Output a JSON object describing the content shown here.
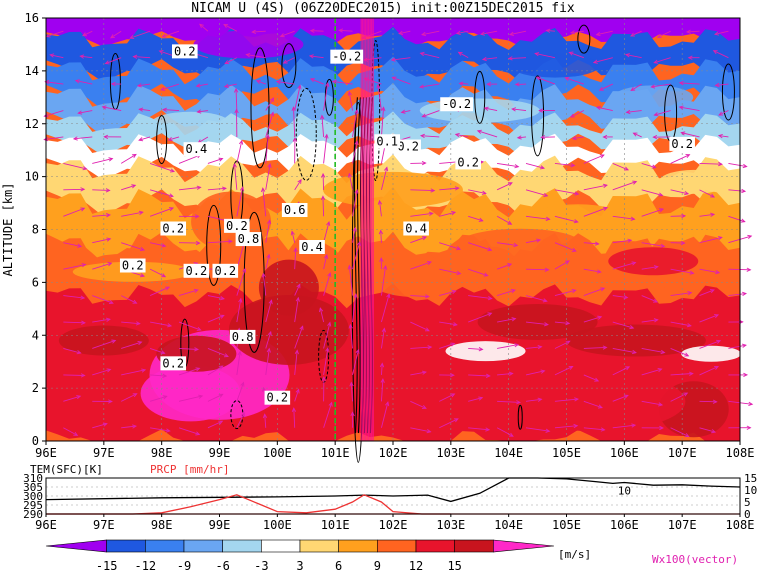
{
  "title": "NICAM U (4S) (06Z20DEC2015) init:00Z15DEC2015 fix",
  "chart_data": [
    {
      "type": "heatmap",
      "ylabel": "ALTITUDE [km]",
      "x_ticks": [
        "96E",
        "97E",
        "98E",
        "99E",
        "100E",
        "101E",
        "102E",
        "103E",
        "104E",
        "105E",
        "106E",
        "107E",
        "108E"
      ],
      "y_ticks": [
        "0",
        "2",
        "4",
        "6",
        "8",
        "10",
        "12",
        "14",
        "16"
      ],
      "xlim": [
        96,
        108
      ],
      "ylim": [
        0,
        16
      ],
      "unit": "m/s",
      "vector_label": "Wx100(vector)",
      "contour_labels": [
        "0.2",
        "-0.2",
        "0.4",
        "0.6",
        "0.8",
        "0.2",
        "0.2",
        "0.2",
        "0.2",
        "0.2",
        "-0.2",
        "0.2",
        "0.2",
        "0.4",
        "-0.2",
        "0.8",
        "0.2",
        "0.4",
        "0.2",
        "0.1"
      ],
      "colors": {
        "vector": "#e020b0",
        "dashed_line": "#22bb22",
        "contour": "#000000"
      }
    },
    {
      "type": "line",
      "series": [
        {
          "name": "TEM(SFC)[K]",
          "color": "#000000",
          "x": [
            96,
            98,
            100,
            101,
            101.5,
            102,
            102.6,
            103,
            103.5,
            104,
            104.5,
            105,
            105.5,
            105.8,
            106,
            106.5,
            107,
            107.5,
            108
          ],
          "values": [
            298,
            299,
            299.5,
            300,
            300.5,
            300,
            300.5,
            297,
            301.5,
            310,
            310,
            309.5,
            308,
            307,
            307.5,
            306,
            306.2,
            305.5,
            305
          ]
        },
        {
          "name": "PRCP [mm/hr]",
          "color": "#ee3333",
          "x": [
            96,
            97.5,
            98,
            98.5,
            99,
            99.3,
            99.7,
            100,
            100.5,
            101,
            101.3,
            101.5,
            101.8,
            102,
            102.5,
            103
          ],
          "values": [
            0,
            0,
            0.5,
            3,
            6,
            8,
            4,
            1,
            0.5,
            2,
            5,
            8,
            5,
            1,
            0,
            0
          ]
        }
      ],
      "y_ticks_left": [
        "290",
        "295",
        "300",
        "305",
        "310"
      ],
      "y_ticks_right": [
        "0",
        "5",
        "10",
        "15"
      ],
      "right_marker_label": "10"
    }
  ],
  "colorbar": {
    "labels": [
      "-15",
      "-12",
      "-9",
      "-6",
      "-3",
      "3",
      "6",
      "9",
      "12",
      "15"
    ],
    "unit": "[m/s]",
    "colors": [
      "#a000f0",
      "#1f58e0",
      "#3a80f0",
      "#6aa6f2",
      "#a4d6ef",
      "#ffffff",
      "#ffd773",
      "#ffa01e",
      "#ff6420",
      "#e8142c",
      "#c8141e",
      "#ff28c8"
    ]
  }
}
